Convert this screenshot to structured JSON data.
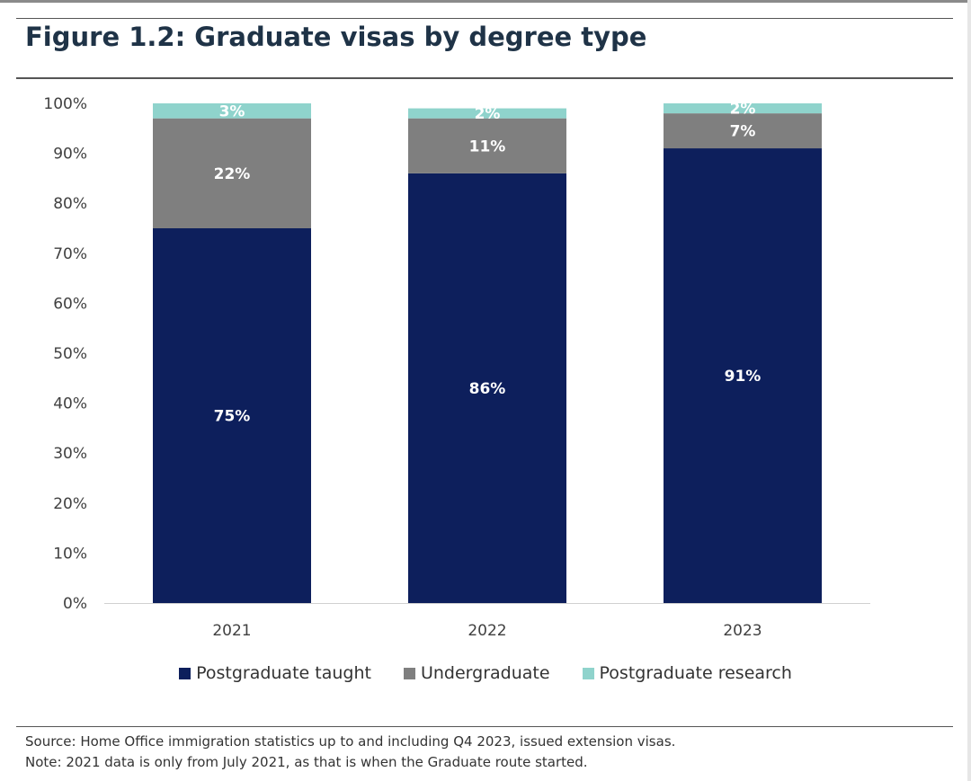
{
  "figure": {
    "title": "Figure 1.2: Graduate visas by degree type",
    "source": "Source: Home Office immigration statistics up to and including Q4 2023, issued extension visas.",
    "note": "Note: 2021 data is only from July 2021, as that is when the Graduate route started."
  },
  "chart_data": {
    "type": "bar",
    "stacked": true,
    "title": "Figure 1.2: Graduate visas by degree type",
    "xlabel": "",
    "ylabel": "",
    "categories": [
      "2021",
      "2022",
      "2023"
    ],
    "series": [
      {
        "name": "Postgraduate taught",
        "color": "#0d1f5c",
        "values": [
          75,
          86,
          91
        ],
        "labels": [
          "75%",
          "86%",
          "91%"
        ]
      },
      {
        "name": "Undergraduate",
        "color": "#7f7f7f",
        "values": [
          22,
          11,
          7
        ],
        "labels": [
          "22%",
          "11%",
          "7%"
        ]
      },
      {
        "name": "Postgraduate research",
        "color": "#8fd3cc",
        "values": [
          3,
          2,
          2
        ],
        "labels": [
          "3%",
          "2%",
          "2%"
        ]
      }
    ],
    "ylim": [
      0,
      100
    ],
    "yticks": [
      "0%",
      "10%",
      "20%",
      "30%",
      "40%",
      "50%",
      "60%",
      "70%",
      "80%",
      "90%",
      "100%"
    ],
    "grid": false,
    "legend_position": "bottom"
  }
}
